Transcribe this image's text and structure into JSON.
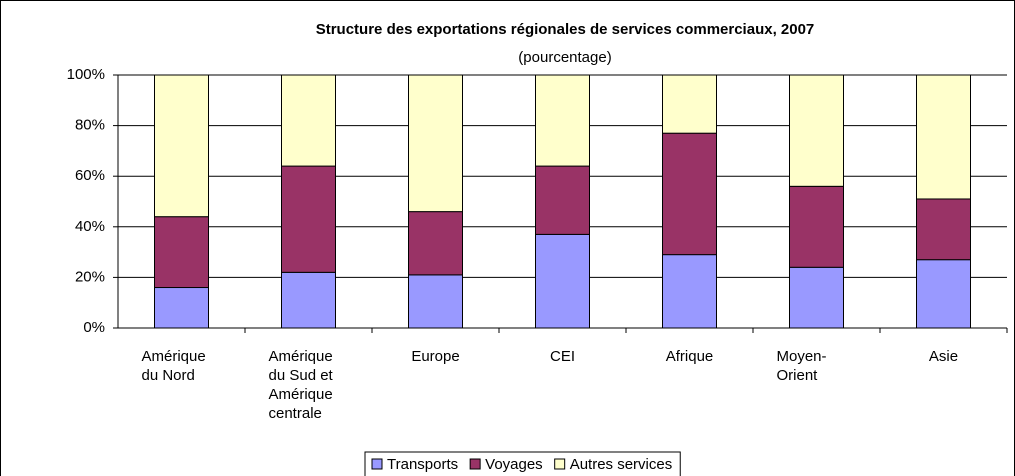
{
  "chart_data": {
    "type": "stacked_bar",
    "title": "Structure des exportations régionales de services commerciaux, 2007",
    "subtitle": "(pourcentage)",
    "categories": [
      "Amérique du Nord",
      "Amérique du Sud et Amérique centrale",
      "Europe",
      "CEI",
      "Afrique",
      "Moyen-Orient",
      "Asie"
    ],
    "series": [
      {
        "name": "Transports",
        "color": "#9999ff",
        "values": [
          16,
          22,
          21,
          37,
          29,
          24,
          27
        ]
      },
      {
        "name": "Voyages",
        "color": "#993366",
        "values": [
          28,
          42,
          25,
          27,
          48,
          32,
          24
        ]
      },
      {
        "name": "Autres services",
        "color": "#ffffcc",
        "values": [
          56,
          36,
          54,
          36,
          23,
          44,
          49
        ]
      }
    ],
    "ylim": [
      0,
      100
    ],
    "yticks": [
      {
        "value": 0,
        "label": "0%"
      },
      {
        "value": 20,
        "label": "20%"
      },
      {
        "value": 40,
        "label": "40%"
      },
      {
        "value": 60,
        "label": "60%"
      },
      {
        "value": 80,
        "label": "80%"
      },
      {
        "value": 100,
        "label": "100%"
      }
    ],
    "grid": true,
    "legend": "bottom"
  }
}
